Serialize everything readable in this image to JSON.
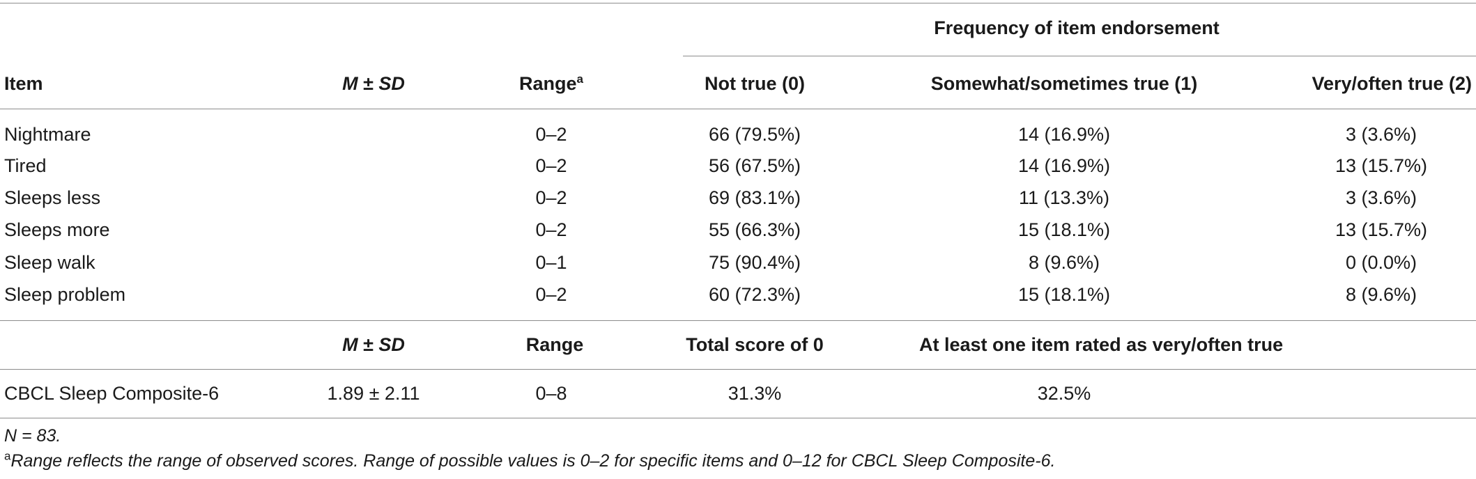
{
  "table": {
    "group_header": "Frequency of item endorsement",
    "columns": {
      "item": "Item",
      "m": "M",
      "pm": " ± ",
      "sd": "SD",
      "range": "Range",
      "range_mark": "a",
      "not_true": "Not true (0)",
      "somewhat": "Somewhat/sometimes true (1)",
      "very": "Very/often true (2)"
    },
    "rows": [
      {
        "item": "Nightmare",
        "msd": "",
        "range": "0–2",
        "not_true": "66 (79.5%)",
        "somewhat": "14 (16.9%)",
        "very": "3 (3.6%)"
      },
      {
        "item": "Tired",
        "msd": "",
        "range": "0–2",
        "not_true": "56 (67.5%)",
        "somewhat": "14 (16.9%)",
        "very": "13 (15.7%)"
      },
      {
        "item": "Sleeps less",
        "msd": "",
        "range": "0–2",
        "not_true": "69 (83.1%)",
        "somewhat": "11 (13.3%)",
        "very": "3 (3.6%)"
      },
      {
        "item": "Sleeps more",
        "msd": "",
        "range": "0–2",
        "not_true": "55 (66.3%)",
        "somewhat": "15 (18.1%)",
        "very": "13 (15.7%)"
      },
      {
        "item": "Sleep walk",
        "msd": "",
        "range": "0–1",
        "not_true": "75 (90.4%)",
        "somewhat": "8 (9.6%)",
        "very": "0 (0.0%)"
      },
      {
        "item": "Sleep problem",
        "msd": "",
        "range": "0–2",
        "not_true": "60 (72.3%)",
        "somewhat": "15 (18.1%)",
        "very": "8 (9.6%)"
      }
    ],
    "composite_header": {
      "m": "M",
      "pm": " ± ",
      "sd": "SD",
      "range": "Range",
      "total_zero": "Total score of 0",
      "at_least_one": "At least one item rated as very/often true"
    },
    "composite_row": {
      "item": "CBCL Sleep Composite-6",
      "msd": "1.89 ± 2.11",
      "range": "0–8",
      "total_zero": "31.3%",
      "at_least_one": "32.5%"
    }
  },
  "notes": {
    "n": "N = 83.",
    "footnote_mark": "a",
    "footnote": "Range reflects the range of observed scores. Range of possible values is 0–2 for specific items and 0–12 for CBCL Sleep Composite-6."
  }
}
